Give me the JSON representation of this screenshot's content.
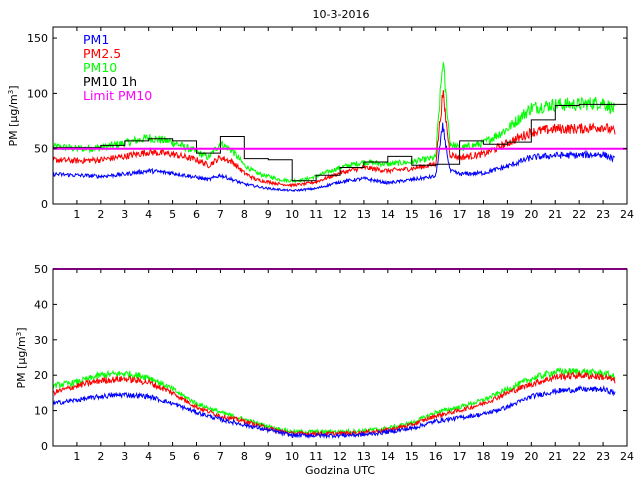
{
  "chart_data": [
    {
      "type": "line",
      "title": "10-3-2016",
      "xlabel": "",
      "ylabel": "PM [µg/m³]",
      "ylabel_main": "PM [µg/m",
      "ylabel_sup": "3",
      "ylabel_tail": "]",
      "xlim": [
        0,
        24
      ],
      "ylim": [
        0,
        160
      ],
      "xticks": [
        "1",
        "2",
        "3",
        "4",
        "5",
        "6",
        "7",
        "8",
        "9",
        "10",
        "11",
        "12",
        "13",
        "14",
        "15",
        "16",
        "17",
        "18",
        "19",
        "20",
        "21",
        "22",
        "23",
        "24"
      ],
      "yticks": [
        "0",
        "50",
        "100",
        "150"
      ],
      "legend_location": "top-left",
      "legend": [
        {
          "label": "PM1",
          "color": "#0000ff"
        },
        {
          "label": "PM2.5",
          "color": "#ff0000"
        },
        {
          "label": "PM10",
          "color": "#00ff00"
        },
        {
          "label": "PM10 1h",
          "color": "#000000"
        },
        {
          "label": "Limit PM10",
          "color": "#ff00ff"
        }
      ],
      "limit_pm10": 50,
      "series": [
        {
          "name": "PM1",
          "color": "#0000ff",
          "x": [
            0,
            1,
            2,
            3,
            4,
            5,
            6,
            6.5,
            7,
            7.5,
            8,
            8.5,
            9,
            9.5,
            10,
            10.5,
            11,
            12,
            13,
            14,
            15,
            16,
            16.3,
            16.6,
            17,
            18,
            19,
            20,
            21,
            22,
            23,
            23.5
          ],
          "values": [
            27,
            26,
            25,
            27,
            30,
            28,
            24,
            22,
            26,
            22,
            18,
            16,
            14,
            13,
            12,
            13,
            14,
            20,
            23,
            19,
            22,
            25,
            70,
            30,
            27,
            28,
            34,
            42,
            44,
            44,
            45,
            40
          ]
        },
        {
          "name": "PM2.5",
          "color": "#ff0000",
          "x": [
            0,
            1,
            2,
            3,
            4,
            5,
            6,
            6.5,
            7,
            7.5,
            8,
            8.5,
            9,
            9.5,
            10,
            10.5,
            11,
            12,
            13,
            14,
            15,
            16,
            16.3,
            16.6,
            17,
            18,
            19,
            20,
            21,
            22,
            23,
            23.5
          ],
          "values": [
            40,
            39,
            40,
            43,
            47,
            45,
            40,
            35,
            42,
            38,
            28,
            22,
            20,
            18,
            17,
            18,
            20,
            28,
            33,
            30,
            32,
            36,
            100,
            45,
            42,
            45,
            55,
            65,
            68,
            68,
            70,
            65
          ]
        },
        {
          "name": "PM10",
          "color": "#00ff00",
          "x": [
            0,
            1,
            2,
            3,
            4,
            5,
            6,
            6.5,
            7,
            7.5,
            8,
            8.5,
            9,
            9.5,
            10,
            10.5,
            11,
            12,
            13,
            14,
            15,
            16,
            16.3,
            16.6,
            17,
            18,
            19,
            20,
            21,
            22,
            23,
            23.5
          ],
          "values": [
            52,
            50,
            51,
            55,
            60,
            56,
            47,
            42,
            55,
            48,
            35,
            28,
            25,
            22,
            21,
            22,
            25,
            33,
            38,
            36,
            38,
            42,
            130,
            55,
            50,
            55,
            68,
            87,
            90,
            90,
            92,
            85
          ]
        },
        {
          "name": "PM10 1h",
          "color": "#000000",
          "step": true,
          "x": [
            0,
            1,
            2,
            3,
            4,
            5,
            6,
            7,
            8,
            9,
            10,
            11,
            12,
            13,
            14,
            15,
            16,
            17,
            18,
            19,
            20,
            21,
            22,
            23
          ],
          "values": [
            51,
            51,
            53,
            57,
            59,
            57,
            46,
            61,
            41,
            40,
            21,
            26,
            33,
            38,
            43,
            35,
            36,
            57,
            54,
            56,
            76,
            89,
            90,
            90
          ]
        }
      ]
    },
    {
      "type": "line",
      "title": "",
      "xlabel": "Godzina UTC",
      "ylabel": "PM [µg/m³]",
      "ylabel_main": "PM [µg/m",
      "ylabel_sup": "3",
      "ylabel_tail": "]",
      "xlim": [
        0,
        24
      ],
      "ylim": [
        0,
        50
      ],
      "xticks": [
        "1",
        "2",
        "3",
        "4",
        "5",
        "6",
        "7",
        "8",
        "9",
        "10",
        "11",
        "12",
        "13",
        "14",
        "15",
        "16",
        "17",
        "18",
        "19",
        "20",
        "21",
        "22",
        "23",
        "24"
      ],
      "yticks": [
        "0",
        "10",
        "20",
        "30",
        "40",
        "50"
      ],
      "limit_pm10": 50,
      "series": [
        {
          "name": "PM1",
          "color": "#0000ff",
          "x": [
            0,
            1,
            2,
            3,
            4,
            5,
            6,
            7,
            8,
            9,
            10,
            11,
            12,
            13,
            14,
            15,
            16,
            17,
            18,
            19,
            20,
            21,
            22,
            23,
            23.5
          ],
          "values": [
            12,
            13,
            14,
            14.5,
            14,
            12,
            9.5,
            7.5,
            6,
            4.5,
            3,
            3,
            3,
            3.2,
            4,
            5,
            7,
            8,
            9,
            11,
            14,
            15.5,
            16,
            16,
            15
          ]
        },
        {
          "name": "PM2.5",
          "color": "#ff0000",
          "x": [
            0,
            1,
            2,
            3,
            4,
            5,
            6,
            7,
            8,
            9,
            10,
            11,
            12,
            13,
            14,
            15,
            16,
            17,
            18,
            19,
            20,
            21,
            22,
            23,
            23.5
          ],
          "values": [
            15,
            17,
            18.5,
            19,
            18,
            15,
            11,
            8.5,
            7,
            5,
            3.5,
            3.5,
            3.5,
            3.8,
            4.5,
            6,
            8.5,
            10,
            12,
            15,
            17.5,
            19.5,
            20,
            19.5,
            18.5
          ]
        },
        {
          "name": "PM10",
          "color": "#00ff00",
          "x": [
            0,
            1,
            2,
            3,
            4,
            5,
            6,
            7,
            8,
            9,
            10,
            11,
            12,
            13,
            14,
            15,
            16,
            17,
            18,
            19,
            20,
            21,
            22,
            23,
            23.5
          ],
          "values": [
            17,
            18,
            20,
            20.5,
            19.5,
            16,
            12,
            9.5,
            7.5,
            5.5,
            4,
            4,
            4,
            4.3,
            5,
            6.5,
            9.5,
            11,
            13,
            16,
            19,
            21,
            21,
            20.5,
            19.5
          ]
        }
      ]
    }
  ]
}
